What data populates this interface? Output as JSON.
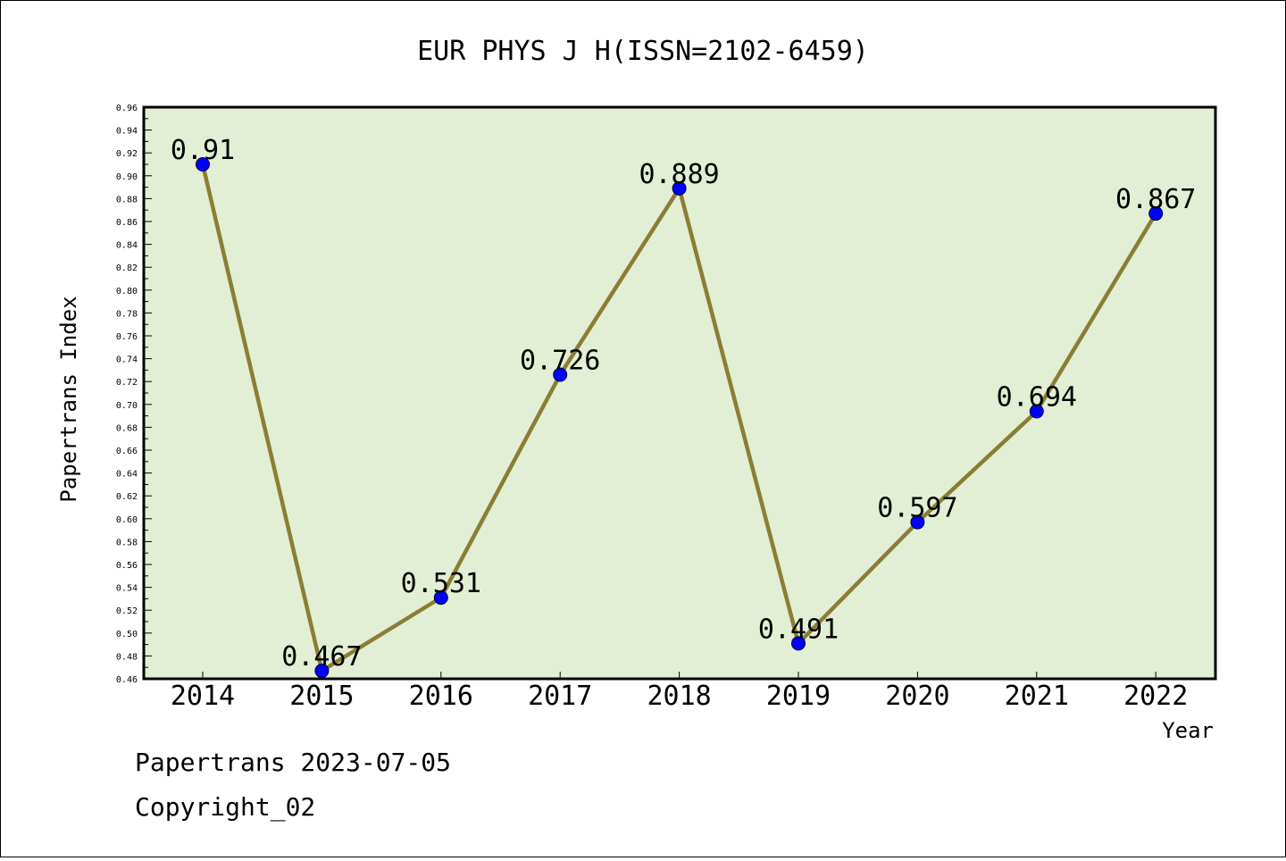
{
  "chart_data": {
    "type": "line",
    "title": "EUR PHYS J H(ISSN=2102-6459)",
    "xlabel": "Year",
    "ylabel": "Papertrans Index",
    "categories": [
      "2014",
      "2015",
      "2016",
      "2017",
      "2018",
      "2019",
      "2020",
      "2021",
      "2022"
    ],
    "series": [
      {
        "values": [
          0.91,
          0.467,
          0.531,
          0.726,
          0.889,
          0.491,
          0.597,
          0.694,
          0.867
        ],
        "labels": [
          "0.91",
          "0.467",
          "0.531",
          "0.726",
          "0.889",
          "0.491",
          "0.597",
          "0.694",
          "0.867"
        ]
      }
    ],
    "ylim": [
      0.46,
      0.96
    ],
    "yticks": [
      "0.46",
      "0.48",
      "0.50",
      "0.52",
      "0.54",
      "0.56",
      "0.58",
      "0.60",
      "0.62",
      "0.64",
      "0.66",
      "0.68",
      "0.70",
      "0.72",
      "0.74",
      "0.76",
      "0.78",
      "0.80",
      "0.82",
      "0.84",
      "0.86",
      "0.88",
      "0.90",
      "0.92",
      "0.94",
      "0.96"
    ],
    "grid": false,
    "colors": {
      "plot_background": "#e2efd5",
      "line": "#8b7d35",
      "marker": "#0000ff"
    }
  },
  "footer": {
    "line1": "Papertrans 2023-07-05",
    "line2": "Copyright_02"
  }
}
